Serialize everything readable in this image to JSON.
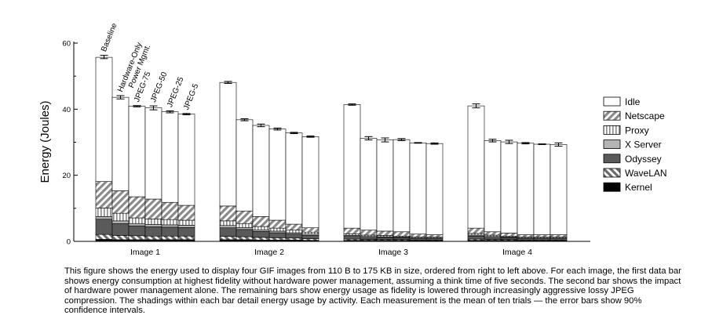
{
  "chart_data": {
    "type": "bar",
    "stacked": true,
    "ylabel": "Energy (Joules)",
    "ylim": [
      0,
      60
    ],
    "yticks": [
      0,
      20,
      40,
      60
    ],
    "groups": [
      "Image 1",
      "Image 2",
      "Image 3",
      "Image 4"
    ],
    "bar_labels": [
      "Baseline",
      "Hardware-Only Power Mgmt.",
      "JPEG-75",
      "JPEG-50",
      "JPEG-25",
      "JPEG-5"
    ],
    "components": [
      "Kernel",
      "WaveLAN",
      "Odyssey",
      "X Server",
      "Proxy",
      "Netscape",
      "Idle"
    ],
    "legend": [
      "Idle",
      "Netscape",
      "Proxy",
      "X Server",
      "Odyssey",
      "WaveLAN",
      "Kernel"
    ],
    "legend_position": "right",
    "error_bars": "90% confidence intervals",
    "bars": [
      [
        {
          "values": [
            0.6,
            1.5,
            4.6,
            0.8,
            2.6,
            8.0,
            37.6
          ],
          "total": 55.8,
          "err": 0.5
        },
        {
          "values": [
            0.5,
            1.3,
            3.6,
            0.8,
            2.3,
            6.8,
            28.3
          ],
          "total": 43.6,
          "err": 0.5
        },
        {
          "values": [
            0.5,
            1.2,
            3.0,
            0.7,
            1.7,
            6.4,
            27.4
          ],
          "total": 40.9,
          "err": 0.2
        },
        {
          "values": [
            0.5,
            1.1,
            2.8,
            0.7,
            1.7,
            6.0,
            27.6
          ],
          "total": 40.4,
          "err": 0.6
        },
        {
          "values": [
            0.5,
            1.1,
            2.7,
            0.7,
            1.6,
            5.2,
            27.4
          ],
          "total": 39.2,
          "err": 0.3
        },
        {
          "values": [
            0.5,
            1.1,
            2.6,
            0.7,
            1.5,
            4.5,
            27.6
          ],
          "total": 38.5,
          "err": 0.2
        }
      ],
      [
        {
          "values": [
            0.5,
            1.0,
            2.6,
            0.7,
            1.4,
            4.5,
            37.4
          ],
          "total": 48.1,
          "err": 0.3
        },
        {
          "values": [
            0.5,
            0.9,
            2.2,
            0.6,
            1.2,
            3.8,
            27.6
          ],
          "total": 36.8,
          "err": 0.3
        },
        {
          "values": [
            0.4,
            0.8,
            1.8,
            0.5,
            1.0,
            3.0,
            27.6
          ],
          "total": 35.1,
          "err": 0.4
        },
        {
          "values": [
            0.4,
            0.7,
            1.5,
            0.5,
            0.9,
            2.4,
            27.6
          ],
          "total": 34.0,
          "err": 0.3
        },
        {
          "values": [
            0.4,
            0.6,
            1.2,
            0.4,
            0.8,
            1.8,
            27.6
          ],
          "total": 32.8,
          "err": 0.2
        },
        {
          "values": [
            0.3,
            0.5,
            1.0,
            0.4,
            0.6,
            1.3,
            27.6
          ],
          "total": 31.7,
          "err": 0.2
        }
      ],
      [
        {
          "values": [
            0.3,
            0.4,
            0.8,
            0.3,
            0.5,
            1.7,
            37.4
          ],
          "total": 41.4,
          "err": 0.2
        },
        {
          "values": [
            0.3,
            0.3,
            0.6,
            0.3,
            0.4,
            1.5,
            27.8
          ],
          "total": 31.2,
          "err": 0.5
        },
        {
          "values": [
            0.3,
            0.3,
            0.6,
            0.2,
            0.4,
            1.3,
            27.6
          ],
          "total": 30.7,
          "err": 0.6
        },
        {
          "values": [
            0.3,
            0.3,
            0.5,
            0.2,
            0.3,
            1.3,
            27.9
          ],
          "total": 30.8,
          "err": 0.3
        },
        {
          "values": [
            0.2,
            0.2,
            0.4,
            0.2,
            0.3,
            0.9,
            27.6
          ],
          "total": 29.8,
          "err": 0.1
        },
        {
          "values": [
            0.2,
            0.2,
            0.4,
            0.2,
            0.3,
            0.7,
            27.6
          ],
          "total": 29.6,
          "err": 0.2
        }
      ],
      [
        {
          "values": [
            0.3,
            0.4,
            0.9,
            0.3,
            0.5,
            1.6,
            37.0
          ],
          "total": 41.0,
          "err": 0.6
        },
        {
          "values": [
            0.3,
            0.3,
            0.6,
            0.3,
            0.4,
            1.0,
            27.6
          ],
          "total": 30.5,
          "err": 0.4
        },
        {
          "values": [
            0.3,
            0.3,
            0.5,
            0.2,
            0.3,
            0.9,
            27.6
          ],
          "total": 30.1,
          "err": 0.5
        },
        {
          "values": [
            0.2,
            0.2,
            0.4,
            0.2,
            0.3,
            0.7,
            27.7
          ],
          "total": 29.7,
          "err": 0.2
        },
        {
          "values": [
            0.2,
            0.2,
            0.4,
            0.2,
            0.3,
            0.7,
            27.4
          ],
          "total": 29.4,
          "err": 0.1
        },
        {
          "values": [
            0.2,
            0.2,
            0.4,
            0.2,
            0.3,
            0.7,
            27.3
          ],
          "total": 29.3,
          "err": 0.5
        }
      ]
    ]
  },
  "caption": "This figure shows the energy used to display four GIF images from 110 B to 175 KB in size, ordered from right to left above. For each image, the first data bar shows energy consumption at highest fidelity without hardware power management, assuming a think time of five seconds. The second bar shows the impact of hardware power management alone. The remaining bars show energy usage as fidelity is lowered through increasingly aggressive lossy JPEG compression. The shadings within each bar detail energy usage by activity. Each measurement is the mean of ten trials — the error bars show 90% confidence intervals."
}
